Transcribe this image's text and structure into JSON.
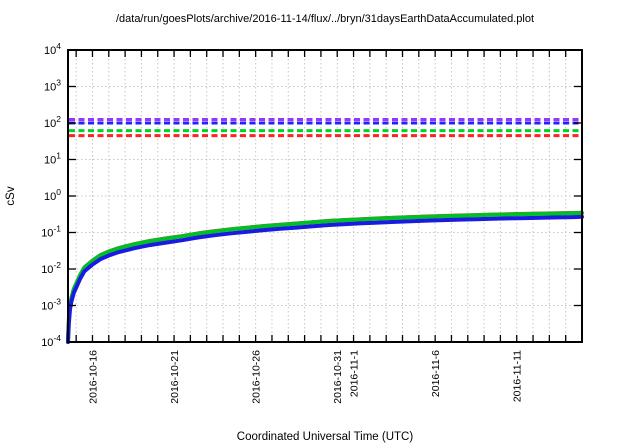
{
  "title": "/data/run/goesPlots/archive/2016-11-14/flux/../bryn/31daysEarthDataAccumulated.plot",
  "axes": {
    "x_label": "Coordinated Universal Time (UTC)",
    "y_label": "cSv"
  },
  "chart_data": {
    "type": "line",
    "title": "/data/run/goesPlots/archive/2016-11-14/flux/../bryn/31daysEarthDataAccumulated.plot",
    "xlabel": "Coordinated Universal Time (UTC)",
    "ylabel": "cSv",
    "y_scale": "log",
    "ylim": [
      0.0001,
      10000
    ],
    "x_days_range": [
      0,
      31.5
    ],
    "grid": {
      "show": true,
      "color": "#c6c6c6",
      "style": "dotted"
    },
    "legend_position": "none",
    "border_color": "#000000",
    "y_ticks": [
      {
        "base": "10",
        "exp": "4"
      },
      {
        "base": "10",
        "exp": "3"
      },
      {
        "base": "10",
        "exp": "2"
      },
      {
        "base": "10",
        "exp": "1"
      },
      {
        "base": "10",
        "exp": "0"
      },
      {
        "base": "10",
        "exp": "-1"
      },
      {
        "base": "10",
        "exp": "-2"
      },
      {
        "base": "10",
        "exp": "-3"
      },
      {
        "base": "10",
        "exp": "-4"
      }
    ],
    "x_ticks": [
      {
        "label": "2016-10-16",
        "day": 1.5
      },
      {
        "label": "2016-10-21",
        "day": 6.5
      },
      {
        "label": "2016-10-26",
        "day": 11.5
      },
      {
        "label": "2016-10-31",
        "day": 16.5
      },
      {
        "label": "2016-11-1",
        "day": 17.5
      },
      {
        "label": "2016-11-6",
        "day": 22.5
      },
      {
        "label": "2016-11-11",
        "day": 27.5
      }
    ],
    "x_minor_tick_days": {
      "start": 0.5,
      "end": 31.5,
      "step": 1
    },
    "reference_lines": [
      {
        "name": "limit-purple",
        "color": "#9933ff",
        "value": 125,
        "style": "dashed"
      },
      {
        "name": "limit-blue",
        "color": "#2222ff",
        "value": 100,
        "style": "dashed"
      },
      {
        "name": "limit-green",
        "color": "#00d422",
        "value": 62,
        "style": "dashed"
      },
      {
        "name": "limit-red",
        "color": "#ff2222",
        "value": 45,
        "style": "dashed"
      }
    ],
    "x_days": [
      0,
      0.05,
      0.12,
      0.2,
      0.35,
      0.5,
      0.75,
      1,
      1.5,
      2,
      2.5,
      3,
      4,
      5,
      6,
      7,
      8,
      9,
      10,
      11,
      12,
      13,
      14,
      15,
      16,
      17,
      18,
      19,
      20,
      21,
      22,
      23,
      24,
      25,
      26,
      27,
      28,
      29,
      30,
      31,
      31.5
    ],
    "series": [
      {
        "name": "accumulated-dose-red",
        "color": "#e63232",
        "width": 2.2,
        "values": [
          0.00011,
          0.00043,
          0.00107,
          0.00171,
          0.003,
          0.0043,
          0.0075,
          0.0118,
          0.0182,
          0.0257,
          0.0321,
          0.0385,
          0.0503,
          0.0621,
          0.0728,
          0.0845,
          0.1006,
          0.1156,
          0.1305,
          0.1445,
          0.1594,
          0.1733,
          0.1873,
          0.2033,
          0.2204,
          0.2333,
          0.245,
          0.2568,
          0.2686,
          0.2793,
          0.29,
          0.2996,
          0.3092,
          0.3178,
          0.3264,
          0.3338,
          0.3413,
          0.3478,
          0.3552,
          0.3627,
          0.3692
        ]
      },
      {
        "name": "accumulated-dose-green",
        "color": "#00c025",
        "width": 4,
        "values": [
          0.0001,
          0.0004,
          0.001,
          0.0016,
          0.0028,
          0.004,
          0.007,
          0.011,
          0.017,
          0.024,
          0.03,
          0.036,
          0.047,
          0.058,
          0.068,
          0.079,
          0.094,
          0.108,
          0.122,
          0.135,
          0.149,
          0.162,
          0.175,
          0.19,
          0.206,
          0.218,
          0.229,
          0.24,
          0.251,
          0.261,
          0.271,
          0.28,
          0.289,
          0.297,
          0.305,
          0.312,
          0.319,
          0.325,
          0.332,
          0.339,
          0.345
        ]
      },
      {
        "name": "accumulated-dose-blue",
        "color": "#1a1ae0",
        "width": 4,
        "values": [
          8e-05,
          0.00031,
          0.00078,
          0.00125,
          0.00218,
          0.00312,
          0.00546,
          0.00858,
          0.01326,
          0.01872,
          0.0234,
          0.02808,
          0.03666,
          0.04524,
          0.05304,
          0.06162,
          0.07332,
          0.08424,
          0.09516,
          0.1053,
          0.11622,
          0.12636,
          0.1365,
          0.1482,
          0.16068,
          0.17004,
          0.17862,
          0.1872,
          0.19578,
          0.20358,
          0.21138,
          0.2184,
          0.22542,
          0.23166,
          0.2379,
          0.24336,
          0.24882,
          0.2535,
          0.25896,
          0.26442,
          0.2691
        ]
      }
    ]
  }
}
